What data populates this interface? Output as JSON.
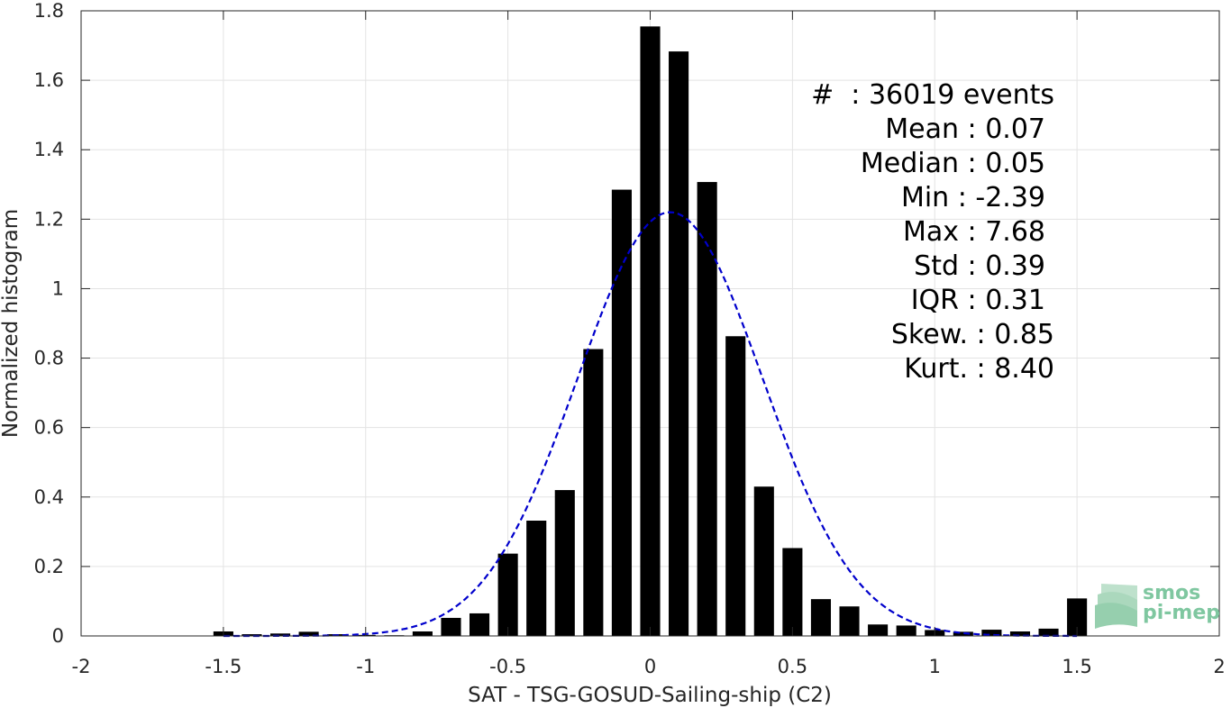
{
  "chart_data": {
    "type": "bar",
    "xlabel": "SAT - TSG-GOSUD-Sailing-ship (C2)",
    "ylabel": "Normalized histogram",
    "xlim": [
      -2,
      2
    ],
    "ylim": [
      0,
      1.8
    ],
    "xticks": [
      -2,
      -1.5,
      -1,
      -0.5,
      0,
      0.5,
      1,
      1.5,
      2
    ],
    "xtick_labels": [
      "-2",
      "-1.5",
      "-1",
      "-0.5",
      "0",
      "0.5",
      "1",
      "1.5",
      "2"
    ],
    "yticks": [
      0,
      0.2,
      0.4,
      0.6,
      0.8,
      1,
      1.2,
      1.4,
      1.6,
      1.8
    ],
    "ytick_labels": [
      "0",
      "0.2",
      "0.4",
      "0.6",
      "0.8",
      "1",
      "1.2",
      "1.4",
      "1.6",
      "1.8"
    ],
    "grid": true,
    "bin_width": 0.1,
    "bar_color": "#000000",
    "bins": [
      -1.5,
      -1.4,
      -1.3,
      -1.2,
      -1.1,
      -1.0,
      -0.9,
      -0.8,
      -0.7,
      -0.6,
      -0.5,
      -0.4,
      -0.3,
      -0.2,
      -0.1,
      0.0,
      0.1,
      0.2,
      0.3,
      0.4,
      0.5,
      0.6,
      0.7,
      0.8,
      0.9,
      1.0,
      1.1,
      1.2,
      1.3,
      1.4,
      1.5
    ],
    "values": [
      0.013,
      0.005,
      0.007,
      0.012,
      0.005,
      0.003,
      0.002,
      0.013,
      0.052,
      0.065,
      0.237,
      0.332,
      0.42,
      0.826,
      1.285,
      1.755,
      1.683,
      1.307,
      0.863,
      0.43,
      0.253,
      0.106,
      0.085,
      0.033,
      0.03,
      0.017,
      0.012,
      0.018,
      0.013,
      0.021,
      0.108
    ],
    "fit_curve": {
      "style": "dashed",
      "color": "#0000cc",
      "mean": 0.07,
      "std": 0.326,
      "peak": 1.22
    },
    "annotations": [
      "#  : 36019 events",
      "Mean : 0.07",
      "Median : 0.05",
      "Min : -2.39",
      "Max : 7.68",
      "Std : 0.39",
      "IQR : 0.31",
      "Skew. : 0.85",
      "Kurt. : 8.40"
    ]
  },
  "logo": {
    "line1": "smos",
    "line2": "pi-mep"
  }
}
